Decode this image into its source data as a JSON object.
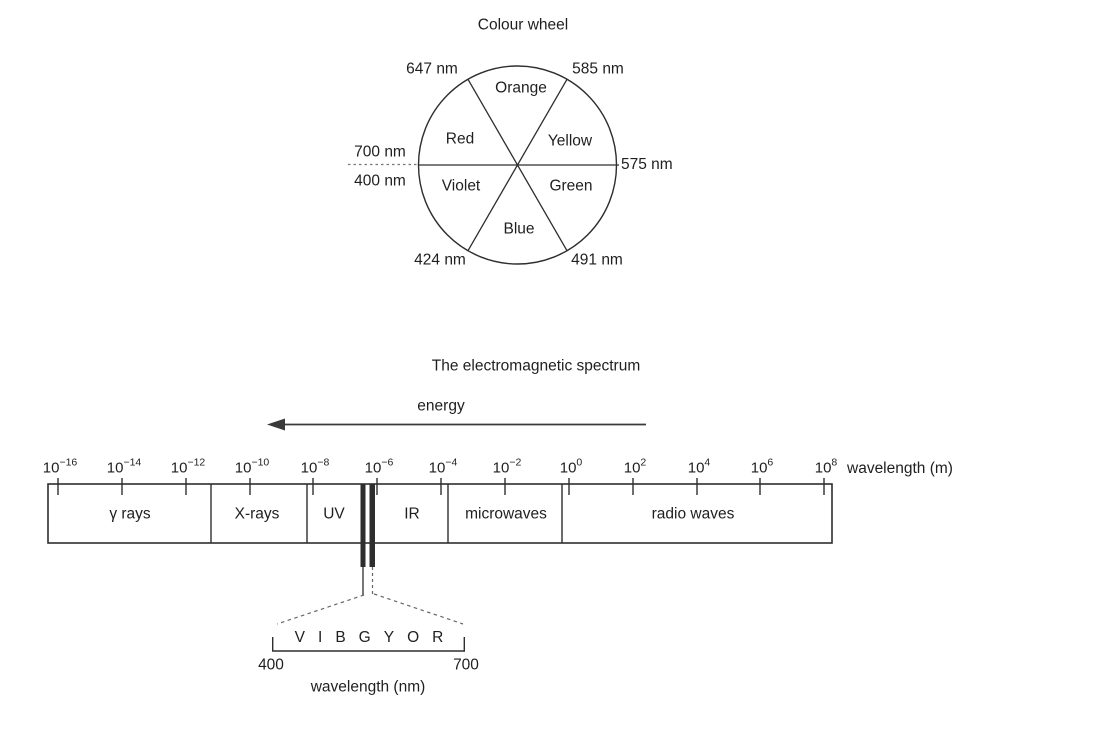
{
  "page": {
    "background": "#ffffff",
    "text_color": "#1f1f1f",
    "line_color": "#2e2e2e"
  },
  "colour_wheel": {
    "title": "Colour wheel",
    "sector_labels": [
      "Orange",
      "Yellow",
      "Green",
      "Blue",
      "Violet",
      "Red"
    ],
    "boundary_labels": {
      "top_left": "647 nm",
      "top_right": "585 nm",
      "right": "575 nm",
      "left_upper": "700 nm",
      "left_lower": "400 nm",
      "bottom_left": "424 nm",
      "bottom_right": "491 nm"
    }
  },
  "spectrum": {
    "title": "The electromagnetic spectrum",
    "energy_label": "energy",
    "axis_unit_label": "wavelength (m)",
    "tick_base": "10",
    "tick_exponents": [
      "−16",
      "−14",
      "−12",
      "−10",
      "−8",
      "−6",
      "−4",
      "−2",
      "0",
      "2",
      "4",
      "6",
      "8"
    ],
    "regions": [
      "γ rays",
      "X-rays",
      "UV",
      "IR",
      "microwaves",
      "radio waves"
    ],
    "visible_band": {
      "letters": [
        "V",
        "I",
        "B",
        "G",
        "Y",
        "O",
        "R"
      ],
      "min_wavelength": "400",
      "max_wavelength": "700",
      "axis_label": "wavelength (nm)"
    }
  }
}
